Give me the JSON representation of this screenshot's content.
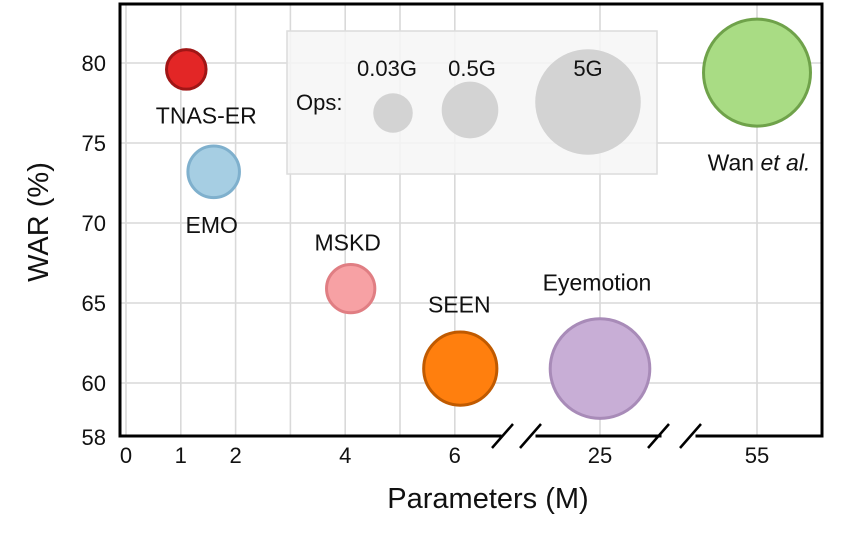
{
  "chart_data": {
    "type": "scatter",
    "subtype": "bubble",
    "title": "",
    "xlabel": "Parameters (M)",
    "ylabel": "WAR (%)",
    "x_axis_broken": true,
    "x_segments": [
      [
        0,
        7
      ],
      [
        25,
        25
      ],
      [
        55,
        55
      ]
    ],
    "xticks": [
      "0",
      "1",
      "2",
      "4",
      "6",
      "25",
      "55"
    ],
    "ylim": [
      58,
      83
    ],
    "yticks": [
      "58",
      "60",
      "65",
      "70",
      "75",
      "80"
    ],
    "grid": true,
    "points": [
      {
        "label": "TNAS-ER",
        "x": 1.1,
        "y": 79.6,
        "ops_g": 0.03,
        "color": "#e32626",
        "edge": "#a01616"
      },
      {
        "label": "EMO",
        "x": 1.6,
        "y": 73.2,
        "ops_g": 0.3,
        "color": "#a6cee3",
        "edge": "#7fb0cd"
      },
      {
        "label": "MSKD",
        "x": 4.1,
        "y": 65.9,
        "ops_g": 0.2,
        "color": "#f7a1a4",
        "edge": "#e07e83"
      },
      {
        "label": "SEEN",
        "x": 6.1,
        "y": 60.9,
        "ops_g": 1.5,
        "color": "#ff7f0e",
        "edge": "#c05a00"
      },
      {
        "label": "Eyemotion",
        "x": 25,
        "y": 60.9,
        "ops_g": 4.2,
        "color": "#c8aed6",
        "edge": "#a88bb8"
      },
      {
        "label_main": "Wan ",
        "label_italic": "et al.",
        "x": 55,
        "y": 79.4,
        "ops_g": 5.2,
        "color": "#a9dc84",
        "edge": "#6fa24a"
      }
    ],
    "size_legend": {
      "title": "Ops:",
      "items": [
        {
          "label": "0.03G",
          "ops_g": 0.03
        },
        {
          "label": "0.5G",
          "ops_g": 0.5
        },
        {
          "label": "5G",
          "ops_g": 5
        }
      ],
      "color": "#d3d3d3"
    }
  }
}
